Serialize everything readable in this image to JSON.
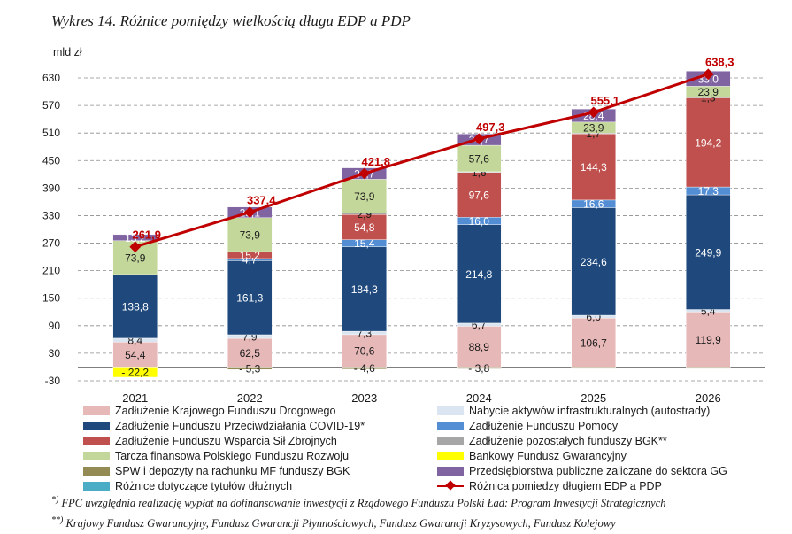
{
  "title": "Wykres 14. Różnice pomiędzy wielkością długu EDP a PDP",
  "chart_data": {
    "type": "bar",
    "stacked": true,
    "unit_label": "mld zł",
    "categories": [
      "2021",
      "2022",
      "2023",
      "2024",
      "2025",
      "2026"
    ],
    "ylim": [
      -30,
      630
    ],
    "yticks": [
      -30,
      30,
      90,
      150,
      210,
      270,
      330,
      390,
      450,
      510,
      570,
      630
    ],
    "grid": true,
    "legend_position": "bottom",
    "series": [
      {
        "name": "Zadłużenie Krajowego Funduszu Drogowego",
        "color": "#e6b8b8",
        "values": [
          54.4,
          62.5,
          70.6,
          88.9,
          106.7,
          119.9
        ],
        "labels": [
          "54,4",
          "62,5",
          "70,6",
          "88,9",
          "106,7",
          "119,9"
        ],
        "label_color": "#1a1a1a"
      },
      {
        "name": "Nabycie aktywów infrastrukturalnych (autostrady)",
        "color": "#dbe5f1",
        "values": [
          8.4,
          7.9,
          7.3,
          6.7,
          6.0,
          5.4
        ],
        "labels": [
          "8,4",
          "7,9",
          "7,3",
          "6,7",
          "6,0",
          "5,4"
        ],
        "label_color": "#1a1a1a"
      },
      {
        "name": "Zadłużenie Funduszu Przeciwdziałania COVID-19*",
        "color": "#1f497d",
        "values": [
          138.8,
          161.3,
          184.3,
          214.8,
          234.6,
          249.9
        ],
        "labels": [
          "138,8",
          "161,3",
          "184,3",
          "214,8",
          "234,6",
          "249,9"
        ],
        "label_color": "#ffffff"
      },
      {
        "name": "Zadłużenie Funduszu Pomocy",
        "color": "#538ed5",
        "values": [
          0,
          4.7,
          15.4,
          16.0,
          16.6,
          17.3
        ],
        "labels": [
          "",
          "4,7",
          "15,4",
          "16,0",
          "16,6",
          "17,3"
        ],
        "label_color": "#ffffff"
      },
      {
        "name": "Zadłużenie Funduszu Wsparcia Sił Zbrojnych",
        "color": "#c0504d",
        "values": [
          0,
          15.2,
          54.8,
          97.6,
          144.3,
          194.2
        ],
        "labels": [
          "",
          "15,2",
          "54,8",
          "97,6",
          "144,3",
          "194,2"
        ],
        "label_color": "#ffffff"
      },
      {
        "name": "Zadłużenie pozostałych funduszy BGK**",
        "color": "#a6a6a6",
        "values": [
          0,
          0,
          2.9,
          1.6,
          1.7,
          1.3
        ],
        "labels": [
          "",
          "",
          "2,9",
          "1,6",
          "1,7",
          "1,3"
        ],
        "label_color": "#1a1a1a"
      },
      {
        "name": "Tarcza finansowa Polskiego Funduszu Rozwoju",
        "color": "#c4d79b",
        "values": [
          73.9,
          73.9,
          73.9,
          57.6,
          23.9,
          23.9
        ],
        "labels": [
          "73,9",
          "73,9",
          "73,9",
          "57,6",
          "23,9",
          "23,9"
        ],
        "label_color": "#1a1a1a"
      },
      {
        "name": "Bankowy Fundusz Gwarancyjny",
        "color": "#ffff00",
        "values": [
          -22.2,
          0,
          0,
          0,
          0,
          0
        ],
        "labels": [
          "- 22,2",
          "",
          "",
          "",
          "",
          ""
        ],
        "label_color": "#1a1a1a"
      },
      {
        "name": "Przedsiębiorstwa publiczne zaliczane do sektora GG",
        "color": "#8064a2",
        "values": [
          13.2,
          23.1,
          24.7,
          24.7,
          28.4,
          33.0
        ],
        "labels": [
          "13,2",
          "23,1",
          "24,7",
          "24,7",
          "28,4",
          "33,0"
        ],
        "label_color": "#ffffff"
      },
      {
        "name": "SPW i depozyty na rachunku MF funduszy BGK",
        "color": "#948a54",
        "values": [
          0,
          -5.3,
          -4.6,
          -3.8,
          -3.5,
          -3.5
        ],
        "labels": [
          "",
          "- 5,3",
          "- 4,6",
          "- 3,8",
          "",
          ""
        ],
        "label_color": "#1a1a1a"
      },
      {
        "name": "Różnice dotyczące tytułów dłużnych",
        "color": "#4bacc6",
        "values": [
          0,
          0,
          0,
          0,
          0,
          0
        ],
        "labels": [
          "",
          "",
          "",
          "",
          "",
          ""
        ],
        "label_color": "#1a1a1a"
      }
    ],
    "line": {
      "name": "Różnica pomiedzy długiem EDP a PDP",
      "color": "#c00000",
      "values": [
        261.9,
        337.4,
        421.8,
        497.3,
        555.1,
        638.3
      ],
      "labels": [
        "261,9",
        "337,4",
        "421,8",
        "497,3",
        "555,1",
        "638,3"
      ]
    }
  },
  "notes": [
    {
      "mark": "*)",
      "text": "FPC uwzględnia realizację wypłat na dofinansowanie inwestycji z Rządowego Funduszu Polski Ład: Program Inwestycji Strategicznych"
    },
    {
      "mark": "**)",
      "text": "Krajowy Fundusz Gwarancyjny, Fundusz Gwarancji Płynnościowych, Fundusz Gwarancji Kryzysowych, Fundusz Kolejowy"
    }
  ]
}
